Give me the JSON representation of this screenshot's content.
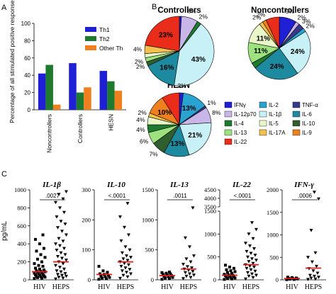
{
  "panel_labels": {
    "a": "A",
    "b": "B",
    "c": "C"
  },
  "chart_data": [
    {
      "panel": "A",
      "type": "bar",
      "ylabel": "Percentage of all stimulated positive responses",
      "ylim": [
        0,
        100
      ],
      "yticks": [
        0,
        20,
        40,
        60,
        80,
        100
      ],
      "categories": [
        "Noncontrollers",
        "Controllers",
        "HESN"
      ],
      "legend_position": "top-right",
      "series": [
        {
          "name": "Th1",
          "color": "#1f1fd6",
          "values": [
            42,
            54,
            45
          ]
        },
        {
          "name": "Th2",
          "color": "#1e7a2f",
          "values": [
            52,
            20,
            33
          ]
        },
        {
          "name": "Other Th",
          "color": "#f07f1e",
          "values": [
            6,
            26,
            22
          ]
        }
      ]
    },
    {
      "panel": "B",
      "type": "pie",
      "title": "Controllers",
      "slices": [
        {
          "cytokine": "IFNγ",
          "value": 1,
          "label": "",
          "color": "#1f1fd6"
        },
        {
          "cytokine": "IL-12p70",
          "value": 8,
          "label": "8%",
          "color": "#c9b6e8"
        },
        {
          "cytokine": "IL-4",
          "value": 2,
          "label": "2%",
          "color": "#1e7a2f"
        },
        {
          "cytokine": "IL-1β",
          "value": 43,
          "label": "43%",
          "color": "#c7f0f7"
        },
        {
          "cytokine": "IL-6",
          "value": 16,
          "label": "16%",
          "color": "#1e8aa0"
        },
        {
          "cytokine": "IL-10",
          "value": 2,
          "label": "2%",
          "color": "#2f5e2f"
        },
        {
          "cytokine": "IL-13",
          "value": 2,
          "label": "2%",
          "color": "#9ee27f"
        },
        {
          "cytokine": "IL-5",
          "value": 2,
          "label": "",
          "color": "#e9f7c8"
        },
        {
          "cytokine": "IL-17A",
          "value": 4,
          "label": "4%",
          "color": "#f2c14e"
        },
        {
          "cytokine": "IL-9",
          "value": 0,
          "label": "",
          "color": "#f07f1e"
        },
        {
          "cytokine": "IL-22",
          "value": 23,
          "label": "23%",
          "color": "#ea2c1a"
        }
      ]
    },
    {
      "panel": "B",
      "type": "pie",
      "title": "Noncontrollers",
      "slices": [
        {
          "cytokine": "IFNγ",
          "value": 9,
          "label": "9%",
          "color": "#1f1fd6"
        },
        {
          "cytokine": "IL-12p70",
          "value": 2,
          "label": "2%",
          "color": "#c9b6e8"
        },
        {
          "cytokine": "TNF-α",
          "value": 3,
          "label": "3%",
          "color": "#3a3a8a"
        },
        {
          "cytokine": "IL-2",
          "value": 2,
          "label": "2%",
          "color": "#2aa3d0"
        },
        {
          "cytokine": "IL-1β",
          "value": 24,
          "label": "24%",
          "color": "#c7f0f7"
        },
        {
          "cytokine": "IL-6",
          "value": 24,
          "label": "24%",
          "color": "#1e8aa0"
        },
        {
          "cytokine": "IL-4",
          "value": 3,
          "label": "",
          "color": "#1e7a2f"
        },
        {
          "cytokine": "IL-13",
          "value": 11,
          "label": "11%",
          "color": "#9ee27f"
        },
        {
          "cytokine": "IL-5",
          "value": 11,
          "label": "11%",
          "color": "#e9f7c8"
        },
        {
          "cytokine": "IL-17A",
          "value": 2,
          "label": "2%",
          "color": "#f2c14e"
        },
        {
          "cytokine": "IL-9",
          "value": 2,
          "label": "2%",
          "color": "#f07f1e"
        },
        {
          "cytokine": "IL-22",
          "value": 7,
          "label": "",
          "color": "#ea2c1a"
        }
      ]
    },
    {
      "panel": "B",
      "type": "pie",
      "title": "HESN",
      "slices": [
        {
          "cytokine": "IFNγ",
          "value": 2,
          "label": "2%",
          "color": "#1f1fd6"
        },
        {
          "cytokine": "IL-2",
          "value": 13,
          "label": "13%",
          "color": "#2aa3d0"
        },
        {
          "cytokine": "TNF-α",
          "value": 1,
          "label": "1%",
          "color": "#3a3a8a"
        },
        {
          "cytokine": "IL-12p70",
          "value": 8,
          "label": "8%",
          "color": "#c9b6e8"
        },
        {
          "cytokine": "IL-1β",
          "value": 21,
          "label": "21%",
          "color": "#c7f0f7"
        },
        {
          "cytokine": "IL-6",
          "value": 13,
          "label": "13%",
          "color": "#1e8aa0"
        },
        {
          "cytokine": "IL-10",
          "value": 7,
          "label": "7%",
          "color": "#2f5e2f"
        },
        {
          "cytokine": "IL-13",
          "value": 6,
          "label": "6%",
          "color": "#9ee27f"
        },
        {
          "cytokine": "IL-4",
          "value": 4,
          "label": "4%",
          "color": "#1e7a2f"
        },
        {
          "cytokine": "IL-5",
          "value": 4,
          "label": "4%",
          "color": "#e9f7c8"
        },
        {
          "cytokine": "IL-17A",
          "value": 2,
          "label": "2%",
          "color": "#f2c14e"
        },
        {
          "cytokine": "IL-9",
          "value": 10,
          "label": "10%",
          "color": "#f07f1e"
        },
        {
          "cytokine": "IL-22",
          "value": 9,
          "label": "",
          "color": "#ea2c1a"
        }
      ]
    },
    {
      "panel": "C",
      "type": "scatter",
      "title": "IL-1β",
      "ylabel": "pg/mL",
      "ylim": [
        0,
        1000
      ],
      "yticks": [
        0,
        200,
        400,
        600,
        800,
        1000
      ],
      "pvalue": ".0027",
      "groups": [
        {
          "name": "HIV",
          "marker": "square",
          "median": 90,
          "values": [
            15,
            20,
            25,
            30,
            35,
            40,
            45,
            50,
            55,
            60,
            70,
            75,
            80,
            85,
            90,
            95,
            100,
            110,
            120,
            130,
            150,
            160,
            180,
            200,
            230,
            250,
            280,
            320,
            350,
            400,
            450,
            500
          ]
        },
        {
          "name": "HEPS",
          "marker": "triangle-down",
          "median": 200,
          "values": [
            10,
            20,
            30,
            40,
            50,
            60,
            70,
            90,
            100,
            120,
            140,
            160,
            180,
            200,
            220,
            240,
            260,
            280,
            300,
            330,
            350,
            380,
            400,
            430,
            460,
            500,
            540,
            580,
            620,
            650,
            700,
            750,
            800,
            860,
            900,
            950,
            980
          ]
        }
      ]
    },
    {
      "panel": "C",
      "type": "scatter",
      "title": "IL-10",
      "ylim": [
        0,
        300
      ],
      "yticks": [
        0,
        100,
        200,
        300
      ],
      "pvalue": "<.0001",
      "groups": [
        {
          "name": "HIV",
          "marker": "square",
          "median": 18,
          "values": [
            2,
            4,
            6,
            8,
            10,
            12,
            15,
            18,
            20,
            25,
            30,
            45
          ]
        },
        {
          "name": "HEPS",
          "marker": "triangle-down",
          "median": 60,
          "values": [
            5,
            10,
            15,
            20,
            25,
            30,
            35,
            40,
            45,
            50,
            55,
            60,
            65,
            70,
            75,
            80,
            90,
            100,
            110,
            130,
            150,
            175,
            210,
            255
          ]
        }
      ]
    },
    {
      "panel": "C",
      "type": "scatter",
      "title": "IL-13",
      "ylim": [
        0,
        1500
      ],
      "yticks": [
        0,
        500,
        1000,
        1500
      ],
      "pvalue": ".0011",
      "groups": [
        {
          "name": "HIV",
          "marker": "square",
          "median": 70,
          "values": [
            10,
            20,
            30,
            40,
            50,
            60,
            70,
            80,
            90,
            100,
            110,
            120,
            130
          ]
        },
        {
          "name": "HEPS",
          "marker": "triangle-down",
          "median": 180,
          "values": [
            20,
            40,
            60,
            80,
            100,
            120,
            140,
            160,
            180,
            200,
            220,
            260,
            300,
            350,
            400,
            550,
            700,
            1200
          ]
        }
      ]
    },
    {
      "panel": "C",
      "type": "scatter",
      "title": "IL-22",
      "ylim": [
        0,
        4500
      ],
      "yticks": [
        0,
        500,
        1000,
        1500,
        3500,
        4000,
        4500
      ],
      "axis_break": [
        1500,
        3500
      ],
      "pvalue": "<.0001",
      "groups": [
        {
          "name": "HIV",
          "marker": "square",
          "median": 100,
          "values": [
            10,
            20,
            30,
            40,
            50,
            60,
            70,
            80,
            90,
            100,
            110,
            120,
            140,
            160,
            180,
            200,
            220,
            250,
            280,
            320
          ]
        },
        {
          "name": "HEPS",
          "marker": "triangle-down",
          "median": 330,
          "values": [
            20,
            50,
            80,
            100,
            130,
            160,
            190,
            220,
            250,
            280,
            300,
            330,
            360,
            400,
            430,
            460,
            500,
            540,
            580,
            620,
            680,
            740,
            800,
            900,
            1000,
            1100,
            1250
          ]
        }
      ]
    },
    {
      "panel": "C",
      "type": "scatter",
      "title": "IFN-γ",
      "ylim": [
        0,
        2000
      ],
      "yticks": [
        0,
        500,
        1000,
        1500,
        2000
      ],
      "pvalue": ".0006",
      "groups": [
        {
          "name": "HIV",
          "marker": "square",
          "median": 30,
          "values": [
            5,
            10,
            15,
            20,
            25,
            30,
            40,
            50,
            60
          ]
        },
        {
          "name": "HEPS",
          "marker": "triangle-down",
          "median": 260,
          "values": [
            10,
            20,
            40,
            60,
            80,
            100,
            150,
            200,
            250,
            300,
            400,
            500,
            600,
            1100,
            1800,
            1950
          ]
        }
      ]
    }
  ]
}
